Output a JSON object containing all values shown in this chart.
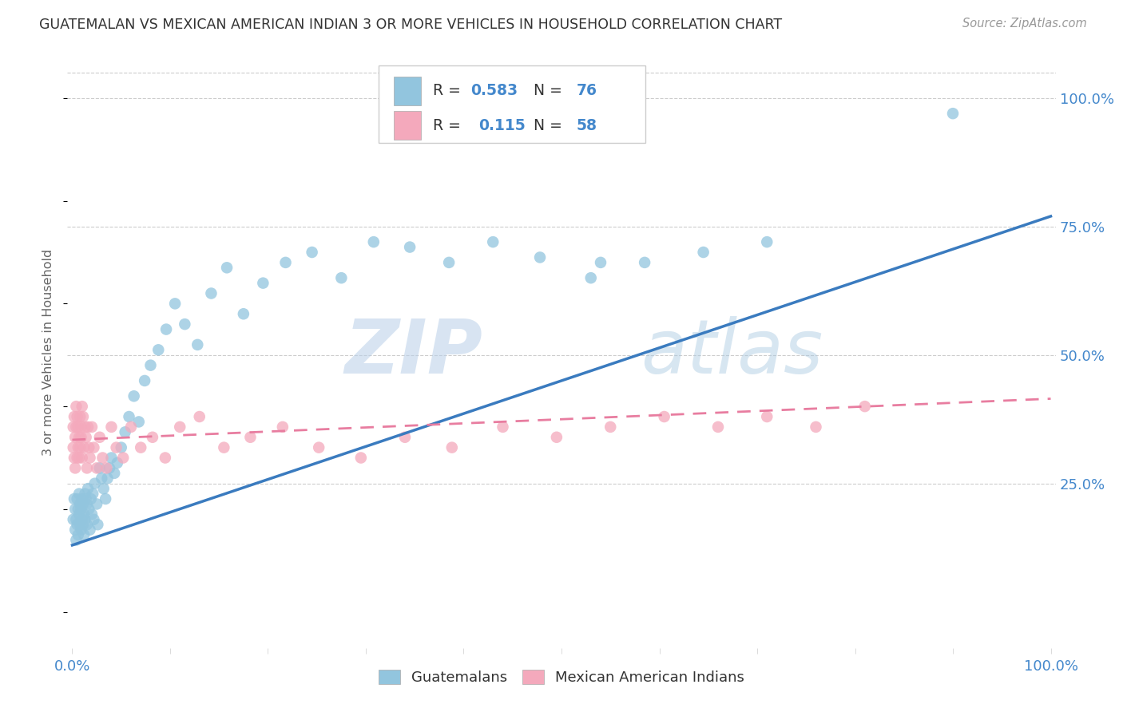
{
  "title": "GUATEMALAN VS MEXICAN AMERICAN INDIAN 3 OR MORE VEHICLES IN HOUSEHOLD CORRELATION CHART",
  "source": "Source: ZipAtlas.com",
  "ylabel": "3 or more Vehicles in Household",
  "blue_color": "#92c5de",
  "pink_color": "#f4a9bc",
  "blue_line_color": "#3a7bbf",
  "pink_line_color": "#e87da0",
  "watermark_zip": "ZIP",
  "watermark_atlas": "atlas",
  "legend_blue_label": "Guatemalans",
  "legend_pink_label": "Mexican American Indians",
  "blue_line_x0": 0.0,
  "blue_line_y0": 0.13,
  "blue_line_x1": 1.0,
  "blue_line_y1": 0.77,
  "pink_line_x0": 0.0,
  "pink_line_y0": 0.335,
  "pink_line_x1": 1.0,
  "pink_line_y1": 0.415,
  "xmin": 0.0,
  "xmax": 1.0,
  "ymin": -0.07,
  "ymax": 1.08,
  "yticks": [
    0.25,
    0.5,
    0.75,
    1.0
  ],
  "ytick_labels": [
    "25.0%",
    "50.0%",
    "75.0%",
    "100.0%"
  ],
  "guatemalan_x": [
    0.001,
    0.002,
    0.003,
    0.003,
    0.004,
    0.004,
    0.005,
    0.005,
    0.006,
    0.006,
    0.007,
    0.007,
    0.008,
    0.008,
    0.009,
    0.009,
    0.01,
    0.01,
    0.011,
    0.011,
    0.012,
    0.012,
    0.013,
    0.013,
    0.014,
    0.015,
    0.015,
    0.016,
    0.017,
    0.018,
    0.019,
    0.02,
    0.021,
    0.022,
    0.023,
    0.025,
    0.026,
    0.028,
    0.03,
    0.032,
    0.034,
    0.036,
    0.038,
    0.04,
    0.043,
    0.046,
    0.05,
    0.054,
    0.058,
    0.063,
    0.068,
    0.074,
    0.08,
    0.088,
    0.096,
    0.105,
    0.115,
    0.128,
    0.142,
    0.158,
    0.175,
    0.195,
    0.218,
    0.245,
    0.275,
    0.308,
    0.345,
    0.385,
    0.43,
    0.478,
    0.53,
    0.585,
    0.645,
    0.71,
    0.54,
    0.9
  ],
  "guatemalan_y": [
    0.18,
    0.22,
    0.16,
    0.2,
    0.14,
    0.18,
    0.22,
    0.17,
    0.2,
    0.15,
    0.19,
    0.23,
    0.17,
    0.21,
    0.16,
    0.2,
    0.18,
    0.22,
    0.17,
    0.21,
    0.15,
    0.19,
    0.23,
    0.18,
    0.22,
    0.17,
    0.21,
    0.24,
    0.2,
    0.16,
    0.22,
    0.19,
    0.23,
    0.18,
    0.25,
    0.21,
    0.17,
    0.28,
    0.26,
    0.24,
    0.22,
    0.26,
    0.28,
    0.3,
    0.27,
    0.29,
    0.32,
    0.35,
    0.38,
    0.42,
    0.37,
    0.45,
    0.48,
    0.51,
    0.55,
    0.6,
    0.56,
    0.52,
    0.62,
    0.67,
    0.58,
    0.64,
    0.68,
    0.7,
    0.65,
    0.72,
    0.71,
    0.68,
    0.72,
    0.69,
    0.65,
    0.68,
    0.7,
    0.72,
    0.68,
    0.97
  ],
  "mexican_x": [
    0.001,
    0.001,
    0.002,
    0.002,
    0.003,
    0.003,
    0.004,
    0.004,
    0.005,
    0.005,
    0.006,
    0.006,
    0.007,
    0.007,
    0.008,
    0.008,
    0.009,
    0.009,
    0.01,
    0.01,
    0.011,
    0.012,
    0.013,
    0.014,
    0.015,
    0.016,
    0.017,
    0.018,
    0.02,
    0.022,
    0.025,
    0.028,
    0.031,
    0.035,
    0.04,
    0.045,
    0.052,
    0.06,
    0.07,
    0.082,
    0.095,
    0.11,
    0.13,
    0.155,
    0.182,
    0.215,
    0.252,
    0.295,
    0.34,
    0.388,
    0.44,
    0.495,
    0.55,
    0.605,
    0.66,
    0.71,
    0.76,
    0.81
  ],
  "mexican_y": [
    0.32,
    0.36,
    0.3,
    0.38,
    0.28,
    0.34,
    0.36,
    0.4,
    0.3,
    0.38,
    0.32,
    0.36,
    0.34,
    0.3,
    0.38,
    0.32,
    0.36,
    0.34,
    0.4,
    0.3,
    0.38,
    0.32,
    0.36,
    0.34,
    0.28,
    0.36,
    0.32,
    0.3,
    0.36,
    0.32,
    0.28,
    0.34,
    0.3,
    0.28,
    0.36,
    0.32,
    0.3,
    0.36,
    0.32,
    0.34,
    0.3,
    0.36,
    0.38,
    0.32,
    0.34,
    0.36,
    0.32,
    0.3,
    0.34,
    0.32,
    0.36,
    0.34,
    0.36,
    0.38,
    0.36,
    0.38,
    0.36,
    0.4
  ]
}
